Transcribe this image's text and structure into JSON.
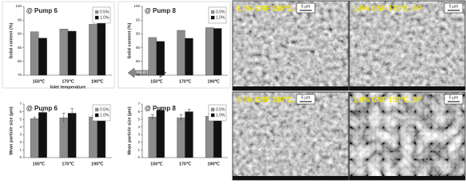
{
  "chart_data": [
    {
      "type": "bar",
      "title": "@ Pump 6",
      "y_label": "Solid content (%)",
      "x_label": "Inlet temperature",
      "categories": [
        "150℃",
        "170℃",
        "190℃"
      ],
      "series": [
        {
          "name": "0.5%",
          "color": "#8c8c8c",
          "values": [
            90.8,
            91.8,
            93.5
          ]
        },
        {
          "name": "1.0%",
          "color": "#111111",
          "values": [
            88.5,
            91,
            94
          ]
        }
      ],
      "ylim": [
        75,
        100
      ],
      "yticks": [
        75,
        80,
        85,
        90,
        95,
        100
      ]
    },
    {
      "type": "bar",
      "title": "@ Pump 8",
      "y_label": "Solid content (%)",
      "categories": [
        "150℃",
        "170℃",
        "190℃"
      ],
      "series": [
        {
          "name": "0.5%",
          "color": "#8c8c8c",
          "values": [
            88.7,
            91.3,
            92.3
          ]
        },
        {
          "name": "1.0%",
          "color": "#111111",
          "values": [
            87.3,
            88.4,
            92
          ]
        }
      ],
      "ylim": [
        75,
        100
      ],
      "yticks": [
        75,
        80,
        85,
        90,
        95,
        100
      ]
    },
    {
      "type": "bar",
      "title": "@ Pump 6",
      "y_label": "Mean particle size (µm)",
      "categories": [
        "150℃",
        "170℃",
        "190℃"
      ],
      "series": [
        {
          "name": "0.5%",
          "color": "#8c8c8c",
          "values": [
            5.1,
            5.2,
            5.3
          ],
          "errors": [
            0.2,
            0.6,
            0.2
          ]
        },
        {
          "name": "1.0%",
          "color": "#111111",
          "values": [
            5.9,
            5.8,
            5.4
          ],
          "errors": [
            0.2,
            0.6,
            0.1
          ]
        }
      ],
      "ylim": [
        0,
        7
      ],
      "yticks": [
        0,
        1,
        2,
        3,
        4,
        5,
        6,
        7
      ]
    },
    {
      "type": "bar",
      "title": "@ Pump 8",
      "y_label": "Mean particle size (µm)",
      "categories": [
        "150℃",
        "170℃",
        "190℃"
      ],
      "series": [
        {
          "name": "0.5%",
          "color": "#8c8c8c",
          "values": [
            5.3,
            5.2,
            5.4
          ],
          "errors": [
            0.3,
            0.4,
            0.3
          ]
        },
        {
          "name": "1.0%",
          "color": "#111111",
          "values": [
            6.2,
            6.0,
            5.4
          ],
          "errors": [
            0.3,
            0.3,
            0.1
          ]
        }
      ],
      "ylim": [
        0,
        7
      ],
      "yticks": [
        0,
        1,
        2,
        3,
        4,
        5,
        6,
        7
      ]
    }
  ],
  "annotation": "Inlet temp",
  "images": [
    {
      "label": "1.0% CNF 150℃, 6P",
      "scale": "5 µm"
    },
    {
      "label": "1.0% CNF 170℃, 8P",
      "scale": "5 µm"
    },
    {
      "label": "0.5% CNF 150℃, 8P",
      "scale": "5 µm"
    },
    {
      "label": "1.0% CNF 150℃, 8P",
      "scale": "5 µm"
    }
  ]
}
